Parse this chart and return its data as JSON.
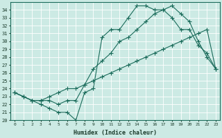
{
  "xlabel": "Humidex (Indice chaleur)",
  "bg_color": "#cceae4",
  "grid_color": "#ffffff",
  "line_color": "#1a6b5a",
  "xlim": [
    -0.5,
    23.5
  ],
  "ylim": [
    20,
    35
  ],
  "xticks": [
    0,
    1,
    2,
    3,
    4,
    5,
    6,
    7,
    8,
    9,
    10,
    11,
    12,
    13,
    14,
    15,
    16,
    17,
    18,
    19,
    20,
    21,
    22,
    23
  ],
  "yticks": [
    20,
    21,
    22,
    23,
    24,
    25,
    26,
    27,
    28,
    29,
    30,
    31,
    32,
    33,
    34
  ],
  "line1_x": [
    0,
    1,
    2,
    3,
    4,
    5,
    6,
    7,
    8,
    9,
    10,
    11,
    12,
    13,
    14,
    15,
    16,
    17,
    18,
    19,
    20,
    21,
    22,
    23
  ],
  "line1_y": [
    23.5,
    23.0,
    22.5,
    22.0,
    21.5,
    21.0,
    21.0,
    20.0,
    23.5,
    24.0,
    30.5,
    31.5,
    31.5,
    33.0,
    34.5,
    34.5,
    34.0,
    34.0,
    33.0,
    31.5,
    31.5,
    29.5,
    28.5,
    26.5
  ],
  "line2_x": [
    0,
    1,
    2,
    3,
    4,
    5,
    6,
    7,
    8,
    9,
    10,
    11,
    12,
    13,
    14,
    15,
    16,
    17,
    18,
    19,
    20,
    21,
    22,
    23
  ],
  "line2_y": [
    23.5,
    23.0,
    22.5,
    22.5,
    22.5,
    22.0,
    22.5,
    22.5,
    24.5,
    26.5,
    27.5,
    28.5,
    30.0,
    30.5,
    31.5,
    32.5,
    33.5,
    34.0,
    34.5,
    33.5,
    32.5,
    30.0,
    28.0,
    26.5
  ],
  "line3_x": [
    0,
    1,
    2,
    3,
    4,
    5,
    6,
    7,
    8,
    9,
    10,
    11,
    12,
    13,
    14,
    15,
    16,
    17,
    18,
    19,
    20,
    21,
    22,
    23
  ],
  "line3_y": [
    23.5,
    23.0,
    22.5,
    22.5,
    23.0,
    23.5,
    24.0,
    24.0,
    24.5,
    25.0,
    25.5,
    26.0,
    26.5,
    27.0,
    27.5,
    28.0,
    28.5,
    29.0,
    29.5,
    30.0,
    30.5,
    31.0,
    31.5,
    26.5
  ]
}
